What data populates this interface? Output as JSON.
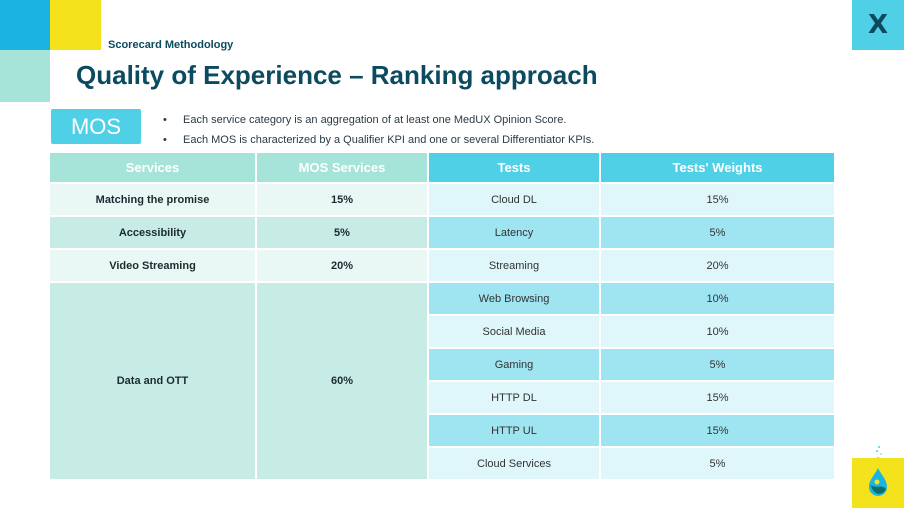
{
  "header": {
    "section_label": "Scorecard Methodology",
    "title": "Quality of Experience – Ranking approach",
    "logo_text": "X"
  },
  "mos": {
    "badge": "MOS",
    "bullets": [
      "Each service category is an aggregation of at least one MedUX Opinion Score.",
      "Each MOS is characterized by a Qualifier KPI and one or several Differentiator KPIs."
    ]
  },
  "table": {
    "headers": [
      "Services",
      "MOS Services",
      "Tests",
      "Tests' Weights"
    ],
    "services": [
      {
        "name": "Matching the promise",
        "mos": "15%"
      },
      {
        "name": "Accessibility",
        "mos": "5%"
      },
      {
        "name": "Video Streaming",
        "mos": "20%"
      },
      {
        "name": "Data and OTT",
        "mos": "60%"
      }
    ],
    "tests": [
      {
        "name": "Cloud DL",
        "weight": "15%"
      },
      {
        "name": "Latency",
        "weight": "5%"
      },
      {
        "name": "Streaming",
        "weight": "20%"
      },
      {
        "name": "Web Browsing",
        "weight": "10%"
      },
      {
        "name": "Social Media",
        "weight": "10%"
      },
      {
        "name": "Gaming",
        "weight": "5%"
      },
      {
        "name": "HTTP DL",
        "weight": "15%"
      },
      {
        "name": "HTTP UL",
        "weight": "15%"
      },
      {
        "name": "Cloud Services",
        "weight": "5%"
      }
    ]
  },
  "colors": {
    "blue": "#1ab3e2",
    "cyan": "#4fd0e6",
    "yellow": "#f4e21d",
    "mint": "#a6e3d9",
    "navy": "#0b4a5f"
  }
}
